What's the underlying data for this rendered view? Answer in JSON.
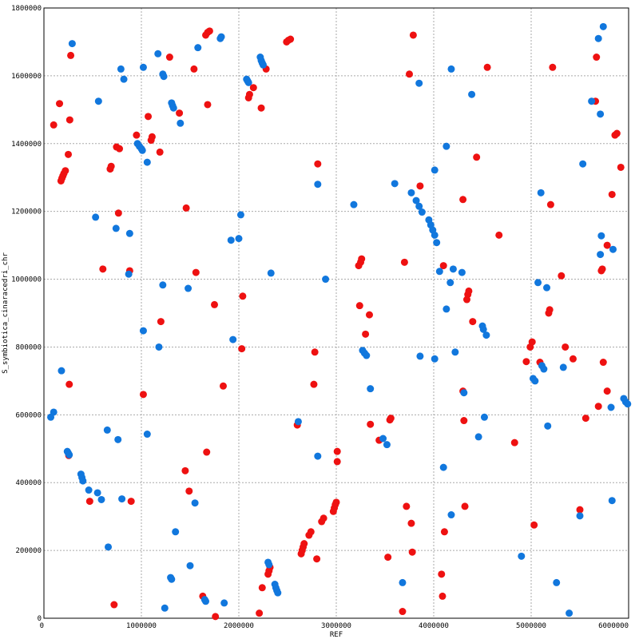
{
  "chart_data": {
    "type": "scatter",
    "xlabel": "REF",
    "ylabel": "S_symbiotica_cinaracedri_chr",
    "xlim": [
      0,
      6000000
    ],
    "ylim": [
      0,
      1800000
    ],
    "x_ticks": [
      "0",
      "1000000",
      "2000000",
      "3000000",
      "4000000",
      "5000000",
      "6000000"
    ],
    "y_ticks": [
      "0",
      "200000",
      "400000",
      "600000",
      "800000",
      "1000000",
      "1200000",
      "1400000",
      "1600000",
      "1800000"
    ],
    "grid": true,
    "series": [
      {
        "color": "#ee1111",
        "points": [
          [
            100000,
            1455000
          ],
          [
            160000,
            1518000
          ],
          [
            275000,
            1660000
          ],
          [
            265000,
            1470000
          ],
          [
            250000,
            1368000
          ],
          [
            175000,
            1290000
          ],
          [
            185000,
            1298000
          ],
          [
            195000,
            1305000
          ],
          [
            205000,
            1312000
          ],
          [
            220000,
            1320000
          ],
          [
            260000,
            690000
          ],
          [
            255000,
            480000
          ],
          [
            470000,
            345000
          ],
          [
            605000,
            1030000
          ],
          [
            680000,
            1325000
          ],
          [
            690000,
            1333000
          ],
          [
            745000,
            1390000
          ],
          [
            775000,
            1385000
          ],
          [
            765000,
            1195000
          ],
          [
            880000,
            1025000
          ],
          [
            895000,
            345000
          ],
          [
            720000,
            40000
          ],
          [
            950000,
            1425000
          ],
          [
            1020000,
            660000
          ],
          [
            1070000,
            1480000
          ],
          [
            1100000,
            1410000
          ],
          [
            1110000,
            1420000
          ],
          [
            1190000,
            1375000
          ],
          [
            1200000,
            875000
          ],
          [
            1290000,
            1655000
          ],
          [
            1390000,
            1490000
          ],
          [
            1460000,
            1210000
          ],
          [
            1450000,
            435000
          ],
          [
            1490000,
            375000
          ],
          [
            1540000,
            1620000
          ],
          [
            1560000,
            1020000
          ],
          [
            1630000,
            65000
          ],
          [
            1660000,
            1720000
          ],
          [
            1680000,
            1728000
          ],
          [
            1700000,
            1732000
          ],
          [
            1680000,
            1515000
          ],
          [
            1670000,
            490000
          ],
          [
            1750000,
            925000
          ],
          [
            1760000,
            5000
          ],
          [
            1840000,
            685000
          ],
          [
            2040000,
            950000
          ],
          [
            2030000,
            795000
          ],
          [
            2100000,
            1535000
          ],
          [
            2110000,
            1545000
          ],
          [
            2150000,
            1565000
          ],
          [
            2210000,
            15000
          ],
          [
            2230000,
            1505000
          ],
          [
            2240000,
            90000
          ],
          [
            2280000,
            1620000
          ],
          [
            2300000,
            130000
          ],
          [
            2310000,
            140000
          ],
          [
            2320000,
            150000
          ],
          [
            2490000,
            1700000
          ],
          [
            2510000,
            1705000
          ],
          [
            2530000,
            1708000
          ],
          [
            2600000,
            570000
          ],
          [
            2640000,
            190000
          ],
          [
            2650000,
            200000
          ],
          [
            2660000,
            210000
          ],
          [
            2670000,
            220000
          ],
          [
            2720000,
            245000
          ],
          [
            2740000,
            255000
          ],
          [
            2770000,
            690000
          ],
          [
            2780000,
            785000
          ],
          [
            2800000,
            175000
          ],
          [
            2810000,
            1340000
          ],
          [
            2850000,
            285000
          ],
          [
            2870000,
            295000
          ],
          [
            2970000,
            315000
          ],
          [
            2980000,
            325000
          ],
          [
            2990000,
            335000
          ],
          [
            3000000,
            342000
          ],
          [
            3010000,
            492000
          ],
          [
            3010000,
            462000
          ],
          [
            3230000,
            1040000
          ],
          [
            3250000,
            1050000
          ],
          [
            3260000,
            1060000
          ],
          [
            3240000,
            922000
          ],
          [
            3300000,
            838000
          ],
          [
            3340000,
            895000
          ],
          [
            3350000,
            572000
          ],
          [
            3440000,
            525000
          ],
          [
            3530000,
            180000
          ],
          [
            3550000,
            585000
          ],
          [
            3560000,
            590000
          ],
          [
            3680000,
            20000
          ],
          [
            3700000,
            1050000
          ],
          [
            3720000,
            330000
          ],
          [
            3750000,
            1605000
          ],
          [
            3770000,
            280000
          ],
          [
            3780000,
            195000
          ],
          [
            3790000,
            1720000
          ],
          [
            3860000,
            1275000
          ],
          [
            4080000,
            130000
          ],
          [
            4090000,
            65000
          ],
          [
            4100000,
            1040000
          ],
          [
            4110000,
            255000
          ],
          [
            4300000,
            1235000
          ],
          [
            4300000,
            670000
          ],
          [
            4310000,
            583000
          ],
          [
            4320000,
            330000
          ],
          [
            4340000,
            940000
          ],
          [
            4350000,
            955000
          ],
          [
            4360000,
            965000
          ],
          [
            4400000,
            875000
          ],
          [
            4440000,
            1360000
          ],
          [
            4550000,
            1625000
          ],
          [
            4670000,
            1130000
          ],
          [
            4830000,
            518000
          ],
          [
            4950000,
            757000
          ],
          [
            4990000,
            800000
          ],
          [
            5010000,
            815000
          ],
          [
            5030000,
            275000
          ],
          [
            5090000,
            755000
          ],
          [
            5180000,
            900000
          ],
          [
            5190000,
            910000
          ],
          [
            5200000,
            1220000
          ],
          [
            5220000,
            1625000
          ],
          [
            5310000,
            1010000
          ],
          [
            5350000,
            800000
          ],
          [
            5430000,
            765000
          ],
          [
            5500000,
            320000
          ],
          [
            5560000,
            590000
          ],
          [
            5660000,
            1525000
          ],
          [
            5670000,
            1655000
          ],
          [
            5690000,
            625000
          ],
          [
            5720000,
            1025000
          ],
          [
            5730000,
            1030000
          ],
          [
            5740000,
            755000
          ],
          [
            5780000,
            670000
          ],
          [
            5780000,
            1100000
          ],
          [
            5830000,
            1250000
          ],
          [
            5860000,
            1425000
          ],
          [
            5880000,
            1430000
          ],
          [
            5920000,
            1330000
          ]
        ]
      },
      {
        "color": "#1177dd",
        "points": [
          [
            70000,
            593000
          ],
          [
            100000,
            608000
          ],
          [
            180000,
            730000
          ],
          [
            240000,
            492000
          ],
          [
            250000,
            487000
          ],
          [
            260000,
            482000
          ],
          [
            290000,
            1695000
          ],
          [
            560000,
            1525000
          ],
          [
            530000,
            1183000
          ],
          [
            380000,
            425000
          ],
          [
            390000,
            415000
          ],
          [
            400000,
            405000
          ],
          [
            460000,
            378000
          ],
          [
            550000,
            370000
          ],
          [
            590000,
            350000
          ],
          [
            650000,
            555000
          ],
          [
            660000,
            210000
          ],
          [
            740000,
            1150000
          ],
          [
            760000,
            527000
          ],
          [
            790000,
            1620000
          ],
          [
            800000,
            352000
          ],
          [
            820000,
            1590000
          ],
          [
            870000,
            1015000
          ],
          [
            880000,
            1135000
          ],
          [
            960000,
            1400000
          ],
          [
            980000,
            1392000
          ],
          [
            1000000,
            1385000
          ],
          [
            1010000,
            1380000
          ],
          [
            1020000,
            1625000
          ],
          [
            1020000,
            848000
          ],
          [
            1060000,
            1345000
          ],
          [
            1060000,
            543000
          ],
          [
            1170000,
            1665000
          ],
          [
            1180000,
            800000
          ],
          [
            1220000,
            1605000
          ],
          [
            1230000,
            1598000
          ],
          [
            1220000,
            983000
          ],
          [
            1240000,
            30000
          ],
          [
            1300000,
            120000
          ],
          [
            1310000,
            115000
          ],
          [
            1310000,
            1520000
          ],
          [
            1320000,
            1512000
          ],
          [
            1330000,
            1505000
          ],
          [
            1350000,
            255000
          ],
          [
            1400000,
            1460000
          ],
          [
            1480000,
            973000
          ],
          [
            1500000,
            155000
          ],
          [
            1550000,
            340000
          ],
          [
            1580000,
            1683000
          ],
          [
            1650000,
            55000
          ],
          [
            1660000,
            50000
          ],
          [
            1810000,
            1710000
          ],
          [
            1820000,
            1715000
          ],
          [
            1850000,
            45000
          ],
          [
            1920000,
            1115000
          ],
          [
            1940000,
            822000
          ],
          [
            2000000,
            1120000
          ],
          [
            2020000,
            1190000
          ],
          [
            2080000,
            1590000
          ],
          [
            2090000,
            1585000
          ],
          [
            2100000,
            1580000
          ],
          [
            2220000,
            1655000
          ],
          [
            2230000,
            1645000
          ],
          [
            2240000,
            1638000
          ],
          [
            2250000,
            1632000
          ],
          [
            2300000,
            165000
          ],
          [
            2310000,
            158000
          ],
          [
            2330000,
            1018000
          ],
          [
            2370000,
            100000
          ],
          [
            2380000,
            90000
          ],
          [
            2390000,
            82000
          ],
          [
            2400000,
            75000
          ],
          [
            2610000,
            580000
          ],
          [
            2810000,
            478000
          ],
          [
            2810000,
            1280000
          ],
          [
            2890000,
            1000000
          ],
          [
            3180000,
            1220000
          ],
          [
            3270000,
            790000
          ],
          [
            3290000,
            782000
          ],
          [
            3310000,
            775000
          ],
          [
            3350000,
            677000
          ],
          [
            3480000,
            530000
          ],
          [
            3520000,
            512000
          ],
          [
            3600000,
            1282000
          ],
          [
            3680000,
            105000
          ],
          [
            3770000,
            1255000
          ],
          [
            3820000,
            1232000
          ],
          [
            3850000,
            1215000
          ],
          [
            3880000,
            1198000
          ],
          [
            3950000,
            1175000
          ],
          [
            3970000,
            1160000
          ],
          [
            3990000,
            1145000
          ],
          [
            4010000,
            1130000
          ],
          [
            4030000,
            1108000
          ],
          [
            3850000,
            1578000
          ],
          [
            3860000,
            773000
          ],
          [
            4010000,
            1322000
          ],
          [
            4010000,
            765000
          ],
          [
            4060000,
            1023000
          ],
          [
            4100000,
            445000
          ],
          [
            4130000,
            1392000
          ],
          [
            4130000,
            912000
          ],
          [
            4170000,
            990000
          ],
          [
            4180000,
            1620000
          ],
          [
            4180000,
            305000
          ],
          [
            4200000,
            1030000
          ],
          [
            4220000,
            785000
          ],
          [
            4290000,
            1020000
          ],
          [
            4310000,
            665000
          ],
          [
            4390000,
            1545000
          ],
          [
            4460000,
            535000
          ],
          [
            4500000,
            862000
          ],
          [
            4510000,
            852000
          ],
          [
            4520000,
            593000
          ],
          [
            4540000,
            835000
          ],
          [
            4900000,
            183000
          ],
          [
            5020000,
            707000
          ],
          [
            5040000,
            700000
          ],
          [
            5070000,
            990000
          ],
          [
            5100000,
            1255000
          ],
          [
            5110000,
            745000
          ],
          [
            5130000,
            735000
          ],
          [
            5160000,
            975000
          ],
          [
            5170000,
            567000
          ],
          [
            5260000,
            105000
          ],
          [
            5330000,
            740000
          ],
          [
            5390000,
            15000
          ],
          [
            5530000,
            1340000
          ],
          [
            5500000,
            302000
          ],
          [
            5620000,
            1525000
          ],
          [
            5690000,
            1710000
          ],
          [
            5710000,
            1487000
          ],
          [
            5710000,
            1073000
          ],
          [
            5720000,
            1128000
          ],
          [
            5740000,
            1745000
          ],
          [
            5820000,
            622000
          ],
          [
            5830000,
            347000
          ],
          [
            5840000,
            1088000
          ],
          [
            5950000,
            648000
          ],
          [
            5970000,
            638000
          ],
          [
            5990000,
            632000
          ]
        ]
      }
    ]
  }
}
